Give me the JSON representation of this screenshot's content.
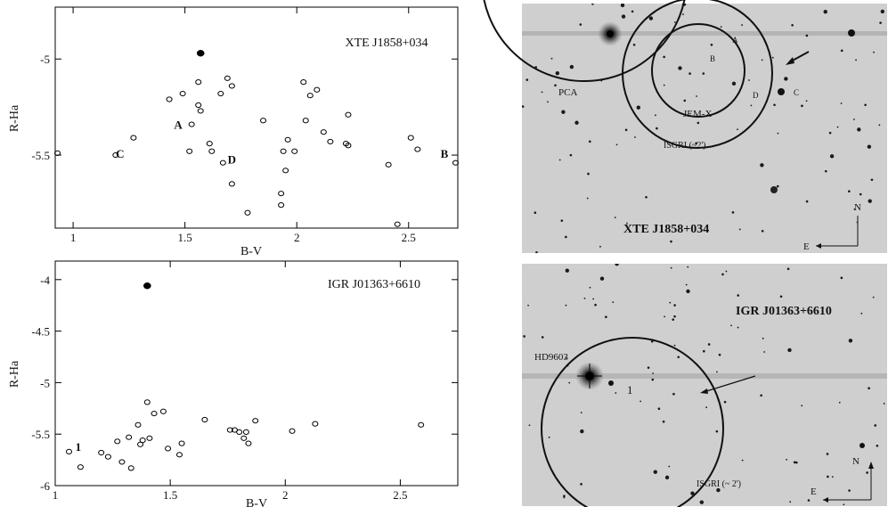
{
  "chart_data": [
    {
      "type": "scatter",
      "title": "XTE J1858+034",
      "xlabel": "B-V",
      "ylabel": "R-Ha",
      "xlim": [
        0.92,
        2.72
      ],
      "ylim": [
        -5.88,
        -4.73
      ],
      "y_inverted": true,
      "xticks": [
        1,
        1.5,
        2,
        2.5
      ],
      "xtick_labels": [
        "1",
        "1.5",
        "2",
        "2.5"
      ],
      "yticks": [
        -5,
        -5.5
      ],
      "ytick_labels": [
        "-5",
        "-5.5"
      ],
      "series": [
        {
          "marker": "filled",
          "points": [
            [
              1.57,
              -4.97
            ]
          ]
        },
        {
          "marker": "open",
          "points": [
            [
              0.93,
              -5.49
            ],
            [
              1.19,
              -5.5
            ],
            [
              1.27,
              -5.41
            ],
            [
              1.43,
              -5.21
            ],
            [
              1.49,
              -5.18
            ],
            [
              1.52,
              -5.48
            ],
            [
              1.53,
              -5.34
            ],
            [
              1.56,
              -5.12
            ],
            [
              1.56,
              -5.24
            ],
            [
              1.57,
              -5.27
            ],
            [
              1.61,
              -5.44
            ],
            [
              1.62,
              -5.48
            ],
            [
              1.66,
              -5.18
            ],
            [
              1.67,
              -5.54
            ],
            [
              1.69,
              -5.1
            ],
            [
              1.71,
              -5.14
            ],
            [
              1.71,
              -5.65
            ],
            [
              1.78,
              -5.8
            ],
            [
              1.85,
              -5.32
            ],
            [
              1.93,
              -5.7
            ],
            [
              1.93,
              -5.76
            ],
            [
              1.94,
              -5.48
            ],
            [
              1.95,
              -5.58
            ],
            [
              1.96,
              -5.42
            ],
            [
              1.99,
              -5.48
            ],
            [
              2.03,
              -5.12
            ],
            [
              2.04,
              -5.32
            ],
            [
              2.06,
              -5.19
            ],
            [
              2.09,
              -5.16
            ],
            [
              2.12,
              -5.38
            ],
            [
              2.15,
              -5.43
            ],
            [
              2.22,
              -5.44
            ],
            [
              2.23,
              -5.45
            ],
            [
              2.23,
              -5.29
            ],
            [
              2.41,
              -5.55
            ],
            [
              2.45,
              -5.86
            ],
            [
              2.51,
              -5.41
            ],
            [
              2.54,
              -5.47
            ],
            [
              2.71,
              -5.54
            ]
          ]
        }
      ],
      "annotations": [
        {
          "text": "A",
          "x": 1.47,
          "y": -5.34
        },
        {
          "text": "C",
          "x": 1.21,
          "y": -5.49
        },
        {
          "text": "D",
          "x": 1.71,
          "y": -5.52
        },
        {
          "text": "B",
          "x": 2.66,
          "y": -5.49
        }
      ]
    },
    {
      "type": "scatter",
      "title": "IGR J01363+6610",
      "xlabel": "B-V",
      "ylabel": "R-Ha",
      "xlim": [
        1.0,
        2.75
      ],
      "ylim": [
        -6.0,
        -3.82
      ],
      "y_inverted": true,
      "xticks": [
        1,
        1.5,
        2,
        2.5
      ],
      "xtick_labels": [
        "1",
        "1.5",
        "2",
        "2.5"
      ],
      "yticks": [
        -4,
        -4.5,
        -5,
        -5.5,
        -6
      ],
      "ytick_labels": [
        "-4",
        "-4.5",
        "-5",
        "-5.5",
        "-6"
      ],
      "series": [
        {
          "marker": "filled",
          "points": [
            [
              1.4,
              -4.06
            ]
          ]
        },
        {
          "marker": "open",
          "points": [
            [
              1.06,
              -5.67
            ],
            [
              1.11,
              -5.82
            ],
            [
              1.2,
              -5.68
            ],
            [
              1.23,
              -5.72
            ],
            [
              1.27,
              -5.57
            ],
            [
              1.29,
              -5.77
            ],
            [
              1.32,
              -5.53
            ],
            [
              1.33,
              -5.83
            ],
            [
              1.36,
              -5.41
            ],
            [
              1.37,
              -5.6
            ],
            [
              1.38,
              -5.56
            ],
            [
              1.4,
              -5.19
            ],
            [
              1.41,
              -5.54
            ],
            [
              1.43,
              -5.3
            ],
            [
              1.47,
              -5.28
            ],
            [
              1.49,
              -5.64
            ],
            [
              1.54,
              -5.7
            ],
            [
              1.55,
              -5.59
            ],
            [
              1.65,
              -5.36
            ],
            [
              1.76,
              -5.46
            ],
            [
              1.78,
              -5.46
            ],
            [
              1.8,
              -5.48
            ],
            [
              1.82,
              -5.54
            ],
            [
              1.83,
              -5.48
            ],
            [
              1.84,
              -5.59
            ],
            [
              1.87,
              -5.37
            ],
            [
              2.03,
              -5.47
            ],
            [
              2.13,
              -5.4
            ],
            [
              2.59,
              -5.41
            ]
          ]
        }
      ],
      "annotations": [
        {
          "text": "1",
          "x": 1.1,
          "y": -5.62
        }
      ]
    }
  ],
  "images": [
    {
      "title": "XTE J1858+034",
      "labels": {
        "pca": "PCA",
        "jemx": "JEM-X",
        "isgri": "ISGRI (~2')",
        "a": "A",
        "b": "B",
        "c": "C",
        "d": "D",
        "north": "N",
        "east": "E"
      }
    },
    {
      "title": "IGR J01363+6610",
      "labels": {
        "hd": "HD9603",
        "one": "1",
        "isgri": "ISGRI (~ 2')",
        "north": "N",
        "east": "E"
      }
    }
  ]
}
